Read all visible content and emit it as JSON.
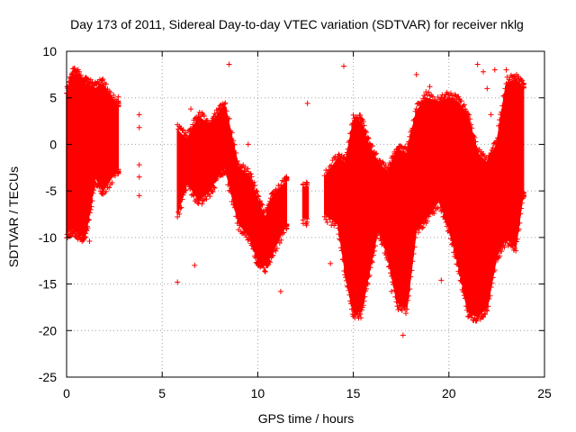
{
  "chart_data": {
    "type": "scatter",
    "title": "Day 173 of 2011, Sidereal Day-to-day VTEC variation (SDTVAR) for receiver nklg",
    "xlabel": "GPS time / hours",
    "ylabel": "SDTVAR / TECUs",
    "xlim": [
      0,
      25
    ],
    "ylim": [
      -25,
      10
    ],
    "xticks": [
      0,
      5,
      10,
      15,
      20,
      25
    ],
    "xtick_labels": [
      "0",
      "5",
      "10",
      "15",
      "20",
      "25"
    ],
    "yticks": [
      -25,
      -20,
      -15,
      -10,
      -5,
      0,
      5,
      10
    ],
    "ytick_labels": [
      "-25",
      "-20",
      "-15",
      "-10",
      "-5",
      "0",
      "5",
      "10"
    ],
    "grid": true,
    "series_color": "#ff0000",
    "series": [
      {
        "name": "SDTVAR",
        "envelope": [
          {
            "x": 0.0,
            "lo": -9.5,
            "hi": 5.5
          },
          {
            "x": 0.3,
            "lo": -9.0,
            "hi": 7.5
          },
          {
            "x": 0.6,
            "lo": -9.5,
            "hi": 7.5
          },
          {
            "x": 0.9,
            "lo": -10.0,
            "hi": 6.5
          },
          {
            "x": 1.1,
            "lo": -8.5,
            "hi": 6.5
          },
          {
            "x": 1.5,
            "lo": -3.5,
            "hi": 6.0
          },
          {
            "x": 1.9,
            "lo": -5.0,
            "hi": 6.5
          },
          {
            "x": 2.7,
            "lo": -2.5,
            "hi": 4.0
          },
          {
            "x": 5.8,
            "lo": -7.5,
            "hi": 1.5
          },
          {
            "x": 6.3,
            "lo": -4.0,
            "hi": 0.5
          },
          {
            "x": 6.9,
            "lo": -6.0,
            "hi": 3.0
          },
          {
            "x": 7.5,
            "lo": -5.0,
            "hi": 2.0
          },
          {
            "x": 8.0,
            "lo": -3.0,
            "hi": 3.5
          },
          {
            "x": 8.3,
            "lo": -2.5,
            "hi": 4.0
          },
          {
            "x": 9.0,
            "lo": -8.5,
            "hi": -2.5
          },
          {
            "x": 9.6,
            "lo": -10.0,
            "hi": -3.5
          },
          {
            "x": 10.0,
            "lo": -12.5,
            "hi": -6.0
          },
          {
            "x": 10.4,
            "lo": -13.0,
            "hi": -8.0
          },
          {
            "x": 10.8,
            "lo": -11.5,
            "hi": -5.5
          },
          {
            "x": 11.5,
            "lo": -8.5,
            "hi": -4.0
          },
          {
            "x": 12.5,
            "lo": -8.0,
            "hi": -4.5
          },
          {
            "x": 13.5,
            "lo": -7.5,
            "hi": -3.5
          },
          {
            "x": 14.2,
            "lo": -8.5,
            "hi": -1.5
          },
          {
            "x": 14.6,
            "lo": -14.0,
            "hi": -2.0
          },
          {
            "x": 15.0,
            "lo": -18.0,
            "hi": 2.5
          },
          {
            "x": 15.4,
            "lo": -18.0,
            "hi": 2.5
          },
          {
            "x": 15.8,
            "lo": -14.0,
            "hi": 0.0
          },
          {
            "x": 16.3,
            "lo": -9.0,
            "hi": -2.0
          },
          {
            "x": 16.8,
            "lo": -12.0,
            "hi": -3.0
          },
          {
            "x": 17.3,
            "lo": -17.0,
            "hi": -0.5
          },
          {
            "x": 17.8,
            "lo": -17.5,
            "hi": -1.0
          },
          {
            "x": 18.3,
            "lo": -9.0,
            "hi": 3.5
          },
          {
            "x": 18.8,
            "lo": -8.0,
            "hi": 5.0
          },
          {
            "x": 19.5,
            "lo": -6.0,
            "hi": 4.5
          },
          {
            "x": 20.0,
            "lo": -9.0,
            "hi": 5.0
          },
          {
            "x": 20.5,
            "lo": -13.0,
            "hi": 4.5
          },
          {
            "x": 21.0,
            "lo": -18.0,
            "hi": 3.0
          },
          {
            "x": 21.5,
            "lo": -18.5,
            "hi": -1.0
          },
          {
            "x": 22.0,
            "lo": -17.5,
            "hi": -2.0
          },
          {
            "x": 22.5,
            "lo": -12.0,
            "hi": 0.0
          },
          {
            "x": 23.0,
            "lo": -10.0,
            "hi": 6.5
          },
          {
            "x": 23.5,
            "lo": -11.0,
            "hi": 7.0
          },
          {
            "x": 23.9,
            "lo": -5.0,
            "hi": 6.0
          }
        ],
        "outliers": [
          {
            "x": 1.2,
            "y": -10.4
          },
          {
            "x": 2.7,
            "y": 5.1
          },
          {
            "x": 3.8,
            "y": 3.2
          },
          {
            "x": 3.8,
            "y": 1.8
          },
          {
            "x": 3.8,
            "y": -3.5
          },
          {
            "x": 3.8,
            "y": -5.5
          },
          {
            "x": 3.8,
            "y": -2.2
          },
          {
            "x": 5.8,
            "y": -14.8
          },
          {
            "x": 6.7,
            "y": -13.0
          },
          {
            "x": 6.5,
            "y": 3.8
          },
          {
            "x": 8.5,
            "y": 8.6
          },
          {
            "x": 9.5,
            "y": 0.0
          },
          {
            "x": 11.2,
            "y": -15.8
          },
          {
            "x": 12.6,
            "y": 4.4
          },
          {
            "x": 14.5,
            "y": 8.4
          },
          {
            "x": 13.8,
            "y": -12.8
          },
          {
            "x": 17.0,
            "y": -15.8
          },
          {
            "x": 17.6,
            "y": -20.5
          },
          {
            "x": 19.6,
            "y": -14.6
          },
          {
            "x": 19.2,
            "y": -7.2
          },
          {
            "x": 21.5,
            "y": 8.6
          },
          {
            "x": 21.8,
            "y": 7.8
          },
          {
            "x": 22.4,
            "y": 8.0
          },
          {
            "x": 23.0,
            "y": 8.0
          },
          {
            "x": 18.3,
            "y": 7.5
          },
          {
            "x": 19.0,
            "y": 6.2
          },
          {
            "x": 22.0,
            "y": 6.0
          },
          {
            "x": 22.2,
            "y": 3.2
          }
        ]
      }
    ]
  }
}
